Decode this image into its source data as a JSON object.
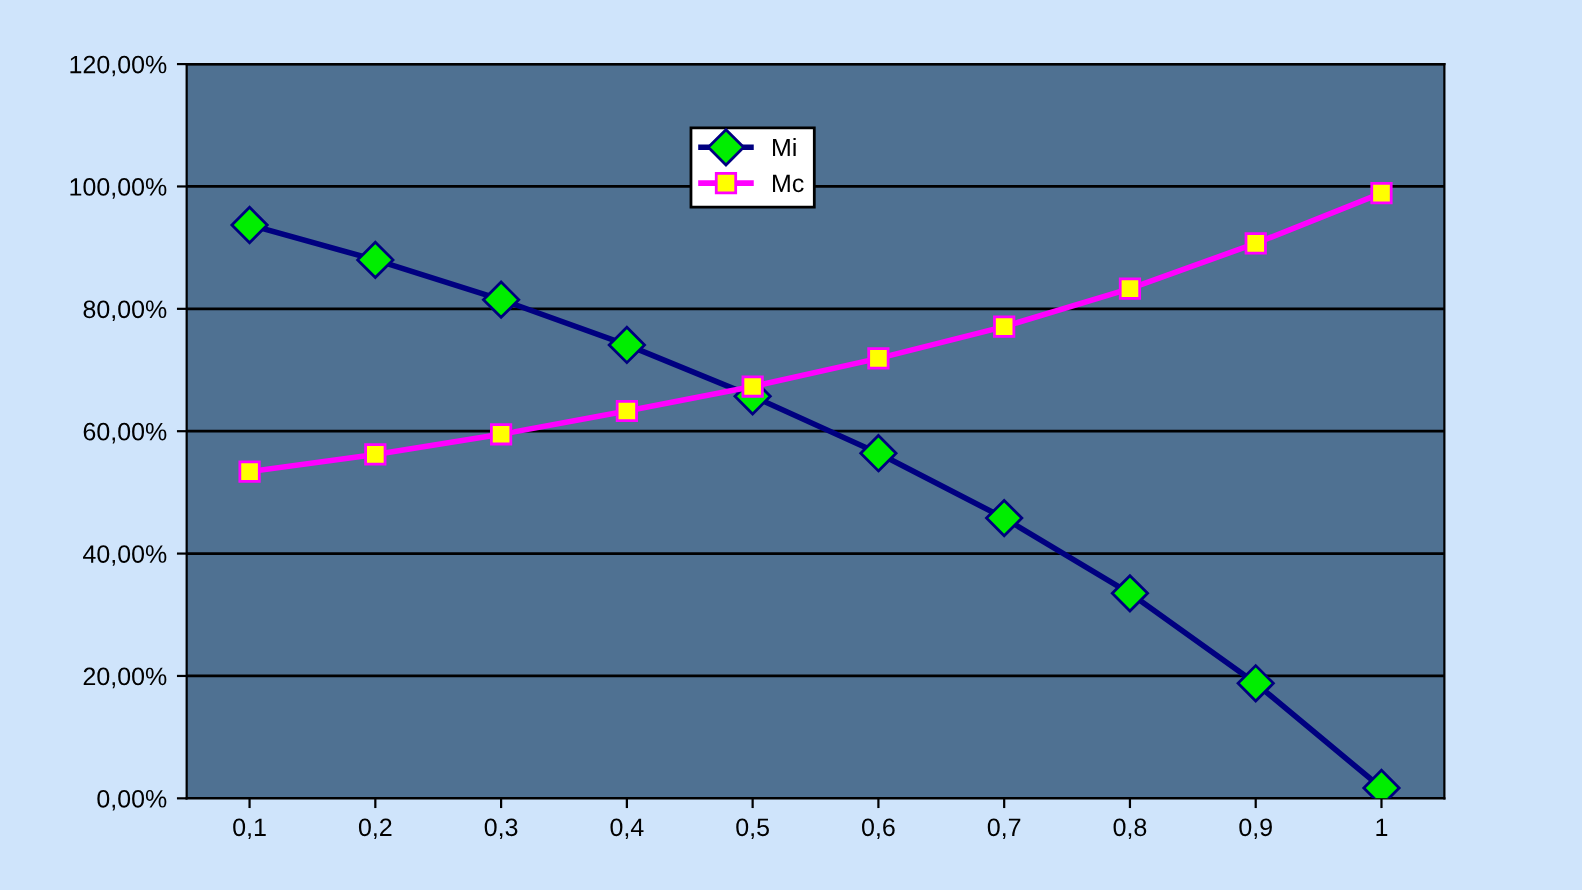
{
  "chart_data": {
    "type": "line",
    "categories": [
      "0,1",
      "0,2",
      "0,3",
      "0,4",
      "0,5",
      "0,6",
      "0,7",
      "0,8",
      "0,9",
      "1"
    ],
    "series": [
      {
        "name": "Mi",
        "color": "#000080",
        "marker": "diamond",
        "values": [
          93.7,
          88.0,
          81.5,
          74.1,
          65.7,
          56.4,
          45.8,
          33.5,
          18.8,
          1.7
        ]
      },
      {
        "name": "Mc",
        "color": "#ff00ff",
        "marker": "square",
        "values": [
          53.4,
          56.2,
          59.5,
          63.3,
          67.3,
          71.9,
          77.1,
          83.3,
          90.7,
          98.9
        ]
      }
    ],
    "ylim": [
      0,
      120
    ],
    "yticks": [
      {
        "value": 0,
        "label": "0,00%"
      },
      {
        "value": 20,
        "label": "20,00%"
      },
      {
        "value": 40,
        "label": "40,00%"
      },
      {
        "value": 60,
        "label": "60,00%"
      },
      {
        "value": 80,
        "label": "80,00%"
      },
      {
        "value": 100,
        "label": "100,00%"
      },
      {
        "value": 120,
        "label": "120,00%"
      }
    ],
    "grid": "y",
    "legend": "top",
    "line_style": "solid"
  }
}
